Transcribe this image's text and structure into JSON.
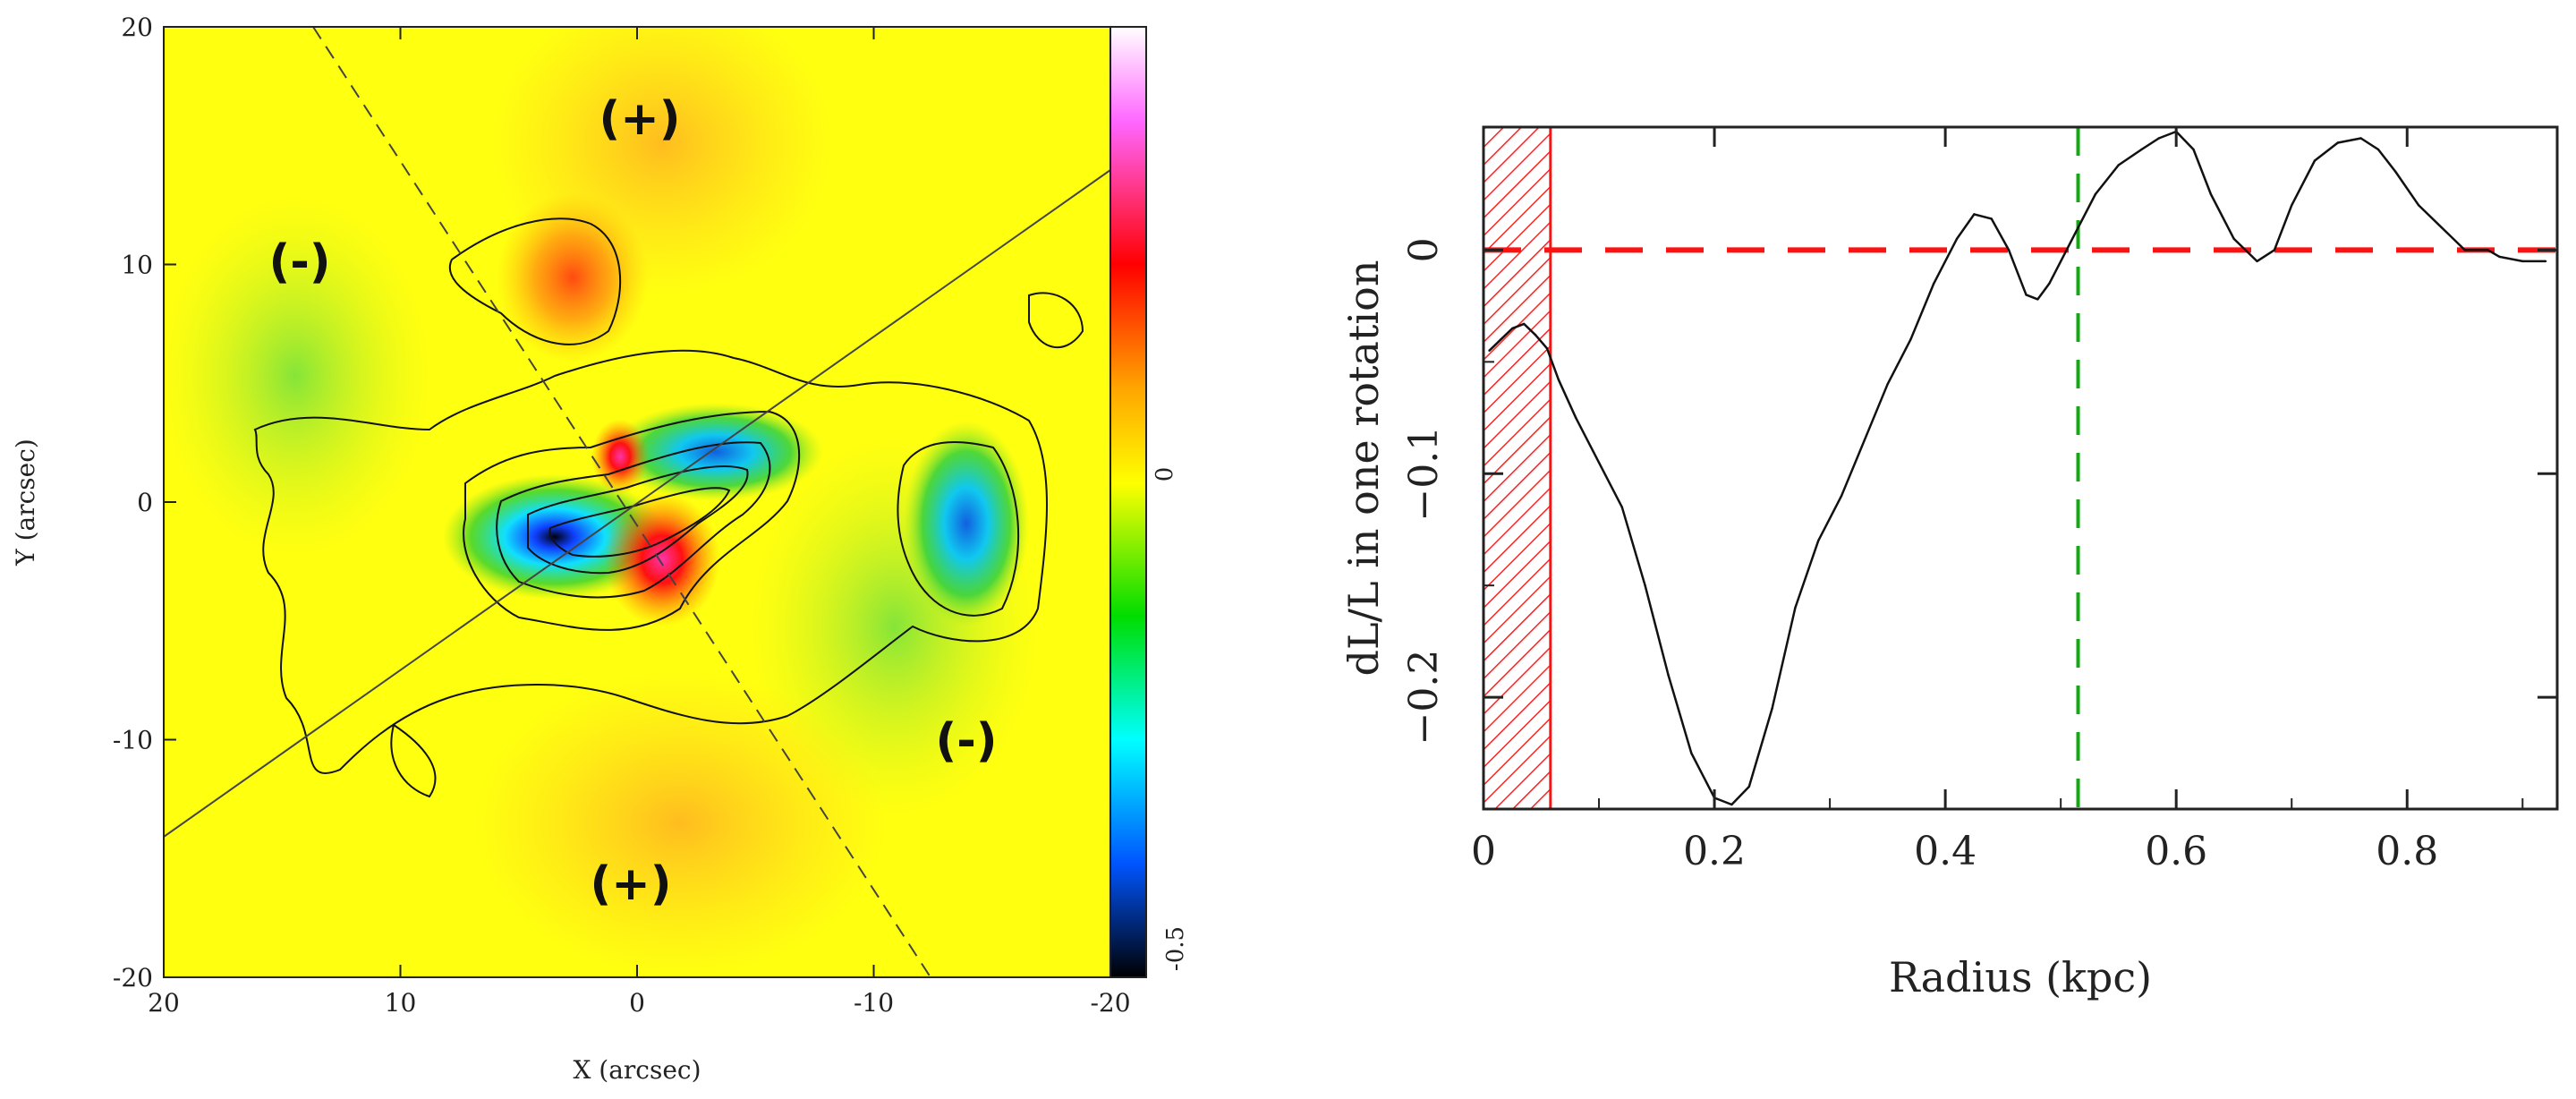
{
  "chart_data": [
    {
      "type": "heatmap",
      "name": "torque-map",
      "title": "",
      "xlabel": "X (arcsec)",
      "ylabel": "Y (arcsec)",
      "xlim": [
        20,
        -20
      ],
      "ylim": [
        -20,
        20
      ],
      "x_ticks": [
        "20",
        "10",
        "0",
        "-10",
        "-20"
      ],
      "y_ticks": [
        "20",
        "10",
        "0",
        "-10",
        "-20"
      ],
      "colorbar": {
        "ticks": [
          "0",
          "-0.5"
        ],
        "stops": [
          "#ffffff",
          "#ff55ff",
          "#ff0000",
          "#ffa500",
          "#ffff00",
          "#00dd00",
          "#00ffff",
          "#0066ff",
          "#000000"
        ]
      },
      "sign_labels": [
        "(+)",
        "(-)",
        "(-)",
        "(+)"
      ],
      "colors": {
        "background": "#ffff10",
        "positive": "#ff2a10",
        "negative": "#1e60ff",
        "contour": "#111111"
      }
    },
    {
      "type": "line",
      "name": "dL-over-L-profile",
      "title": "",
      "xlabel": "Radius (kpc)",
      "ylabel": "dL/L in one rotation",
      "xlim": [
        0,
        0.93
      ],
      "ylim": [
        -0.25,
        0.055
      ],
      "x_ticks": [
        "0",
        "0.2",
        "0.4",
        "0.6",
        "0.8"
      ],
      "y_ticks": [
        "0",
        "−0.1",
        "−0.2"
      ],
      "series": [
        {
          "name": "dL/L",
          "color": "#111111",
          "x": [
            0.005,
            0.015,
            0.025,
            0.035,
            0.045,
            0.055,
            0.065,
            0.08,
            0.1,
            0.12,
            0.14,
            0.16,
            0.18,
            0.2,
            0.215,
            0.23,
            0.25,
            0.27,
            0.29,
            0.31,
            0.33,
            0.35,
            0.37,
            0.39,
            0.41,
            0.425,
            0.44,
            0.455,
            0.47,
            0.48,
            0.49,
            0.5,
            0.515,
            0.53,
            0.55,
            0.57,
            0.585,
            0.6,
            0.615,
            0.63,
            0.65,
            0.67,
            0.685,
            0.7,
            0.72,
            0.74,
            0.76,
            0.775,
            0.79,
            0.81,
            0.83,
            0.85,
            0.87,
            0.88,
            0.9,
            0.92
          ],
          "y": [
            -0.045,
            -0.04,
            -0.035,
            -0.033,
            -0.038,
            -0.044,
            -0.058,
            -0.075,
            -0.095,
            -0.115,
            -0.15,
            -0.19,
            -0.225,
            -0.245,
            -0.248,
            -0.24,
            -0.205,
            -0.16,
            -0.13,
            -0.11,
            -0.085,
            -0.06,
            -0.04,
            -0.015,
            0.005,
            0.016,
            0.014,
            0.0,
            -0.02,
            -0.022,
            -0.015,
            -0.005,
            0.01,
            0.025,
            0.038,
            0.045,
            0.05,
            0.053,
            0.045,
            0.025,
            0.005,
            -0.005,
            0.0,
            0.02,
            0.04,
            0.048,
            0.05,
            0.045,
            0.035,
            0.02,
            0.01,
            0.0,
            0.0,
            -0.003,
            -0.005,
            -0.005
          ]
        }
      ],
      "reference_lines": [
        {
          "name": "zero-line",
          "axis": "y",
          "value": 0,
          "color": "#ff1111",
          "style": "dashed"
        },
        {
          "name": "corotation-line",
          "axis": "x",
          "value": 0.515,
          "color": "#11aa11",
          "style": "dashed"
        }
      ],
      "shaded_region": {
        "name": "resolution-limit",
        "x0": 0,
        "x1": 0.058,
        "color": "#ff1111",
        "pattern": "hatched"
      }
    }
  ]
}
